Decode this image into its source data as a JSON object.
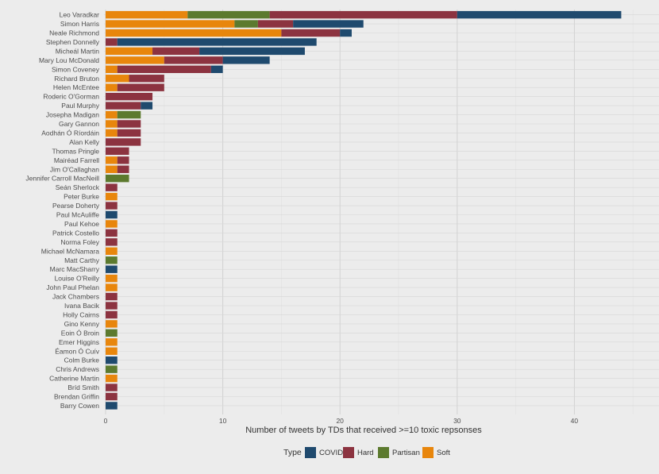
{
  "chart_data": {
    "type": "bar",
    "orientation": "horizontal",
    "stacked": true,
    "xlabel": "Number of tweets by TDs that received >=10 toxic repsonses",
    "xlim": [
      0,
      45
    ],
    "xticks": [
      0,
      10,
      20,
      30,
      40
    ],
    "grid": true,
    "legend": {
      "title": "Type",
      "position": "bottom"
    },
    "series": [
      {
        "name": "Soft",
        "color": "#e8860c"
      },
      {
        "name": "Partisan",
        "color": "#5c7a2e"
      },
      {
        "name": "Hard",
        "color": "#8c3340"
      },
      {
        "name": "COVID",
        "color": "#1f4a6e"
      }
    ],
    "legend_order": [
      "COVID",
      "Hard",
      "Partisan",
      "Soft"
    ],
    "categories": [
      {
        "name": "Leo Varadkar",
        "values": {
          "Soft": 7,
          "Partisan": 7,
          "Hard": 16,
          "COVID": 14
        }
      },
      {
        "name": "Simon Harris",
        "values": {
          "Soft": 11,
          "Partisan": 2,
          "Hard": 3,
          "COVID": 6
        }
      },
      {
        "name": "Neale Richmond",
        "values": {
          "Soft": 15,
          "Partisan": 0,
          "Hard": 5,
          "COVID": 1
        }
      },
      {
        "name": "Stephen Donnelly",
        "values": {
          "Soft": 0,
          "Partisan": 0,
          "Hard": 1,
          "COVID": 17
        }
      },
      {
        "name": "Micheál Martin",
        "values": {
          "Soft": 4,
          "Partisan": 0,
          "Hard": 4,
          "COVID": 9
        }
      },
      {
        "name": "Mary Lou McDonald",
        "values": {
          "Soft": 5,
          "Partisan": 0,
          "Hard": 5,
          "COVID": 4
        }
      },
      {
        "name": "Simon Coveney",
        "values": {
          "Soft": 1,
          "Partisan": 0,
          "Hard": 8,
          "COVID": 1
        }
      },
      {
        "name": "Richard Bruton",
        "values": {
          "Soft": 2,
          "Partisan": 0,
          "Hard": 3,
          "COVID": 0
        }
      },
      {
        "name": "Helen McEntee",
        "values": {
          "Soft": 1,
          "Partisan": 0,
          "Hard": 4,
          "COVID": 0
        }
      },
      {
        "name": "Roderic O'Gorman",
        "values": {
          "Soft": 0,
          "Partisan": 0,
          "Hard": 4,
          "COVID": 0
        }
      },
      {
        "name": "Paul Murphy",
        "values": {
          "Soft": 0,
          "Partisan": 0,
          "Hard": 3,
          "COVID": 1
        }
      },
      {
        "name": "Josepha Madigan",
        "values": {
          "Soft": 1,
          "Partisan": 2,
          "Hard": 0,
          "COVID": 0
        }
      },
      {
        "name": "Gary Gannon",
        "values": {
          "Soft": 1,
          "Partisan": 0,
          "Hard": 2,
          "COVID": 0
        }
      },
      {
        "name": "Aodhán Ó Ríordáin",
        "values": {
          "Soft": 1,
          "Partisan": 0,
          "Hard": 2,
          "COVID": 0
        }
      },
      {
        "name": "Alan Kelly",
        "values": {
          "Soft": 0,
          "Partisan": 0,
          "Hard": 3,
          "COVID": 0
        }
      },
      {
        "name": "Thomas Pringle",
        "values": {
          "Soft": 0,
          "Partisan": 0,
          "Hard": 2,
          "COVID": 0
        }
      },
      {
        "name": "Mairéad Farrell",
        "values": {
          "Soft": 1,
          "Partisan": 0,
          "Hard": 1,
          "COVID": 0
        }
      },
      {
        "name": "Jim O'Callaghan",
        "values": {
          "Soft": 1,
          "Partisan": 0,
          "Hard": 1,
          "COVID": 0
        }
      },
      {
        "name": "Jennifer Carroll MacNeill",
        "values": {
          "Soft": 0,
          "Partisan": 2,
          "Hard": 0,
          "COVID": 0
        }
      },
      {
        "name": "Seán Sherlock",
        "values": {
          "Soft": 0,
          "Partisan": 0,
          "Hard": 1,
          "COVID": 0
        }
      },
      {
        "name": "Peter Burke",
        "values": {
          "Soft": 1,
          "Partisan": 0,
          "Hard": 0,
          "COVID": 0
        }
      },
      {
        "name": "Pearse Doherty",
        "values": {
          "Soft": 0,
          "Partisan": 0,
          "Hard": 1,
          "COVID": 0
        }
      },
      {
        "name": "Paul McAuliffe",
        "values": {
          "Soft": 0,
          "Partisan": 0,
          "Hard": 0,
          "COVID": 1
        }
      },
      {
        "name": "Paul Kehoe",
        "values": {
          "Soft": 1,
          "Partisan": 0,
          "Hard": 0,
          "COVID": 0
        }
      },
      {
        "name": "Patrick Costello",
        "values": {
          "Soft": 0,
          "Partisan": 0,
          "Hard": 1,
          "COVID": 0
        }
      },
      {
        "name": "Norma Foley",
        "values": {
          "Soft": 0,
          "Partisan": 0,
          "Hard": 1,
          "COVID": 0
        }
      },
      {
        "name": "Michael McNamara",
        "values": {
          "Soft": 1,
          "Partisan": 0,
          "Hard": 0,
          "COVID": 0
        }
      },
      {
        "name": "Matt Carthy",
        "values": {
          "Soft": 0,
          "Partisan": 1,
          "Hard": 0,
          "COVID": 0
        }
      },
      {
        "name": "Marc MacSharry",
        "values": {
          "Soft": 0,
          "Partisan": 0,
          "Hard": 0,
          "COVID": 1
        }
      },
      {
        "name": "Louise O'Reilly",
        "values": {
          "Soft": 1,
          "Partisan": 0,
          "Hard": 0,
          "COVID": 0
        }
      },
      {
        "name": "John Paul Phelan",
        "values": {
          "Soft": 1,
          "Partisan": 0,
          "Hard": 0,
          "COVID": 0
        }
      },
      {
        "name": "Jack Chambers",
        "values": {
          "Soft": 0,
          "Partisan": 0,
          "Hard": 1,
          "COVID": 0
        }
      },
      {
        "name": "Ivana Bacik",
        "values": {
          "Soft": 0,
          "Partisan": 0,
          "Hard": 1,
          "COVID": 0
        }
      },
      {
        "name": "Holly Cairns",
        "values": {
          "Soft": 0,
          "Partisan": 0,
          "Hard": 1,
          "COVID": 0
        }
      },
      {
        "name": "Gino Kenny",
        "values": {
          "Soft": 1,
          "Partisan": 0,
          "Hard": 0,
          "COVID": 0
        }
      },
      {
        "name": "Eoin Ó Broin",
        "values": {
          "Soft": 0,
          "Partisan": 1,
          "Hard": 0,
          "COVID": 0
        }
      },
      {
        "name": "Emer Higgins",
        "values": {
          "Soft": 1,
          "Partisan": 0,
          "Hard": 0,
          "COVID": 0
        }
      },
      {
        "name": "Éamon Ó Cuív",
        "values": {
          "Soft": 1,
          "Partisan": 0,
          "Hard": 0,
          "COVID": 0
        }
      },
      {
        "name": "Colm Burke",
        "values": {
          "Soft": 0,
          "Partisan": 0,
          "Hard": 0,
          "COVID": 1
        }
      },
      {
        "name": "Chris Andrews",
        "values": {
          "Soft": 0,
          "Partisan": 1,
          "Hard": 0,
          "COVID": 0
        }
      },
      {
        "name": "Catherine Martin",
        "values": {
          "Soft": 1,
          "Partisan": 0,
          "Hard": 0,
          "COVID": 0
        }
      },
      {
        "name": "Bríd Smith",
        "values": {
          "Soft": 0,
          "Partisan": 0,
          "Hard": 1,
          "COVID": 0
        }
      },
      {
        "name": "Brendan Griffin",
        "values": {
          "Soft": 0,
          "Partisan": 0,
          "Hard": 1,
          "COVID": 0
        }
      },
      {
        "name": "Barry Cowen",
        "values": {
          "Soft": 0,
          "Partisan": 0,
          "Hard": 0,
          "COVID": 1
        }
      }
    ]
  }
}
